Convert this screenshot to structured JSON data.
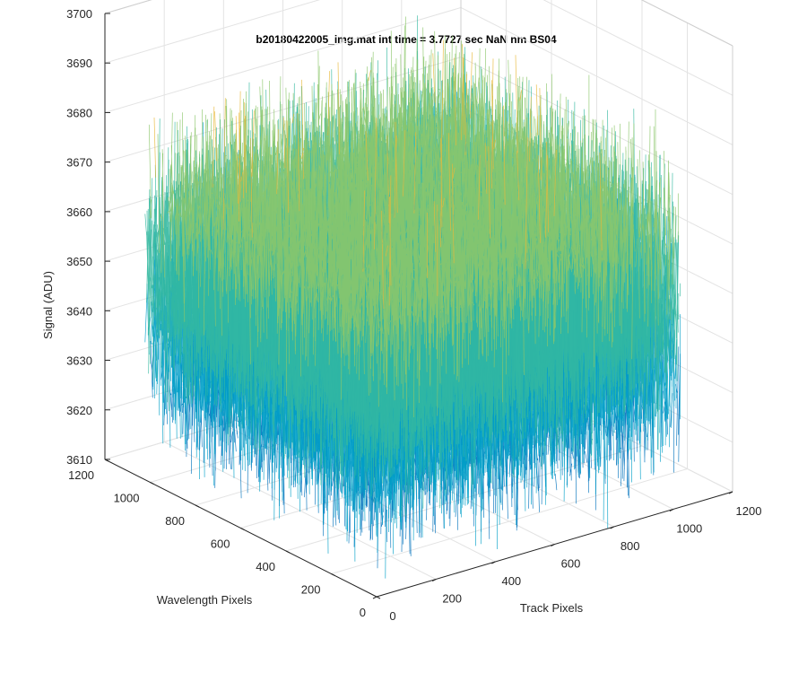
{
  "chart_data": {
    "type": "mesh3d",
    "title": "b20180422005_img.mat int time = 3.7727 sec  NaN nm BS04",
    "xlabel": "Track Pixels",
    "ylabel": "Wavelength Pixels",
    "zlabel": "Signal (ADU)",
    "xlim": [
      0,
      1200
    ],
    "ylim": [
      0,
      1200
    ],
    "zlim": [
      3610,
      3700
    ],
    "x_ticks": [
      0,
      200,
      400,
      600,
      800,
      1000,
      1200
    ],
    "y_ticks": [
      0,
      200,
      400,
      600,
      800,
      1000,
      1200
    ],
    "z_ticks": [
      3610,
      3620,
      3630,
      3640,
      3650,
      3660,
      3670,
      3680,
      3690,
      3700
    ],
    "x_tick_labels": [
      "0",
      "200",
      "400",
      "600",
      "800",
      "1000",
      "1200"
    ],
    "y_tick_labels": [
      "0",
      "200",
      "400",
      "600",
      "800",
      "1000",
      "1200"
    ],
    "z_tick_labels": [
      "3610",
      "3620",
      "3630",
      "3640",
      "3650",
      "3660",
      "3670",
      "3680",
      "3690",
      "3700"
    ],
    "data_x_range": [
      1,
      1024
    ],
    "data_y_range": [
      1,
      1024
    ],
    "signal_mean": 3650,
    "signal_spread": [
      3620,
      3690
    ],
    "grid": true,
    "colormap": [
      "#0072bd",
      "#00a0c8",
      "#33b8a0",
      "#8cc66a",
      "#e8b83a"
    ]
  }
}
